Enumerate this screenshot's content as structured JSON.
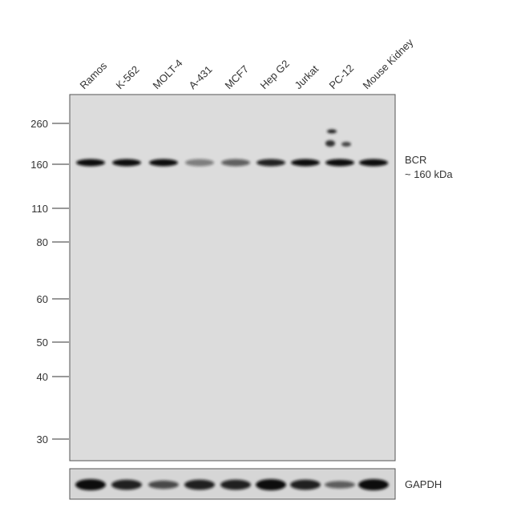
{
  "lanes": [
    "Ramos",
    "K-562",
    "MOLT-4",
    "A-431",
    "MCF7",
    "Hep G2",
    "Jurkat",
    "PC-12",
    "Mouse Kidney"
  ],
  "markers": [
    "260",
    "160",
    "110",
    "80",
    "60",
    "50",
    "40",
    "30"
  ],
  "target": {
    "name": "BCR",
    "size": "~ 160 kDa"
  },
  "loading_control": "GAPDH"
}
